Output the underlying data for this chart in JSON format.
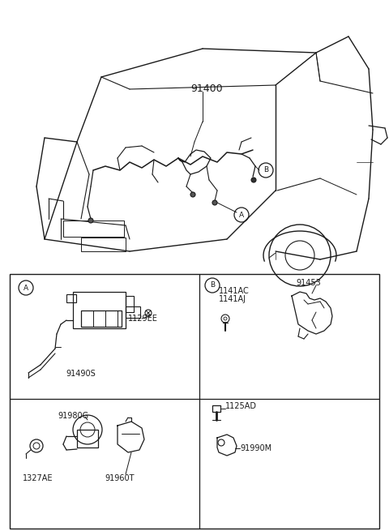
{
  "bg_color": "#ffffff",
  "line_color": "#1a1a1a",
  "label_91400": "91400",
  "label_A": "A",
  "label_B": "B",
  "parts": {
    "boxA_label1": "1129EE",
    "boxA_label2": "91490S",
    "boxB_top_label1": "1141AC",
    "boxB_top_label2": "1141AJ",
    "boxB_top_label3": "91453",
    "boxB_bot_label1": "1125AD",
    "boxB_bot_label2": "91990M",
    "boxC_label1": "91980G",
    "boxC_label2": "1327AE",
    "boxC_label3": "91960T"
  },
  "fig_width": 4.8,
  "fig_height": 6.55,
  "dpi": 100
}
